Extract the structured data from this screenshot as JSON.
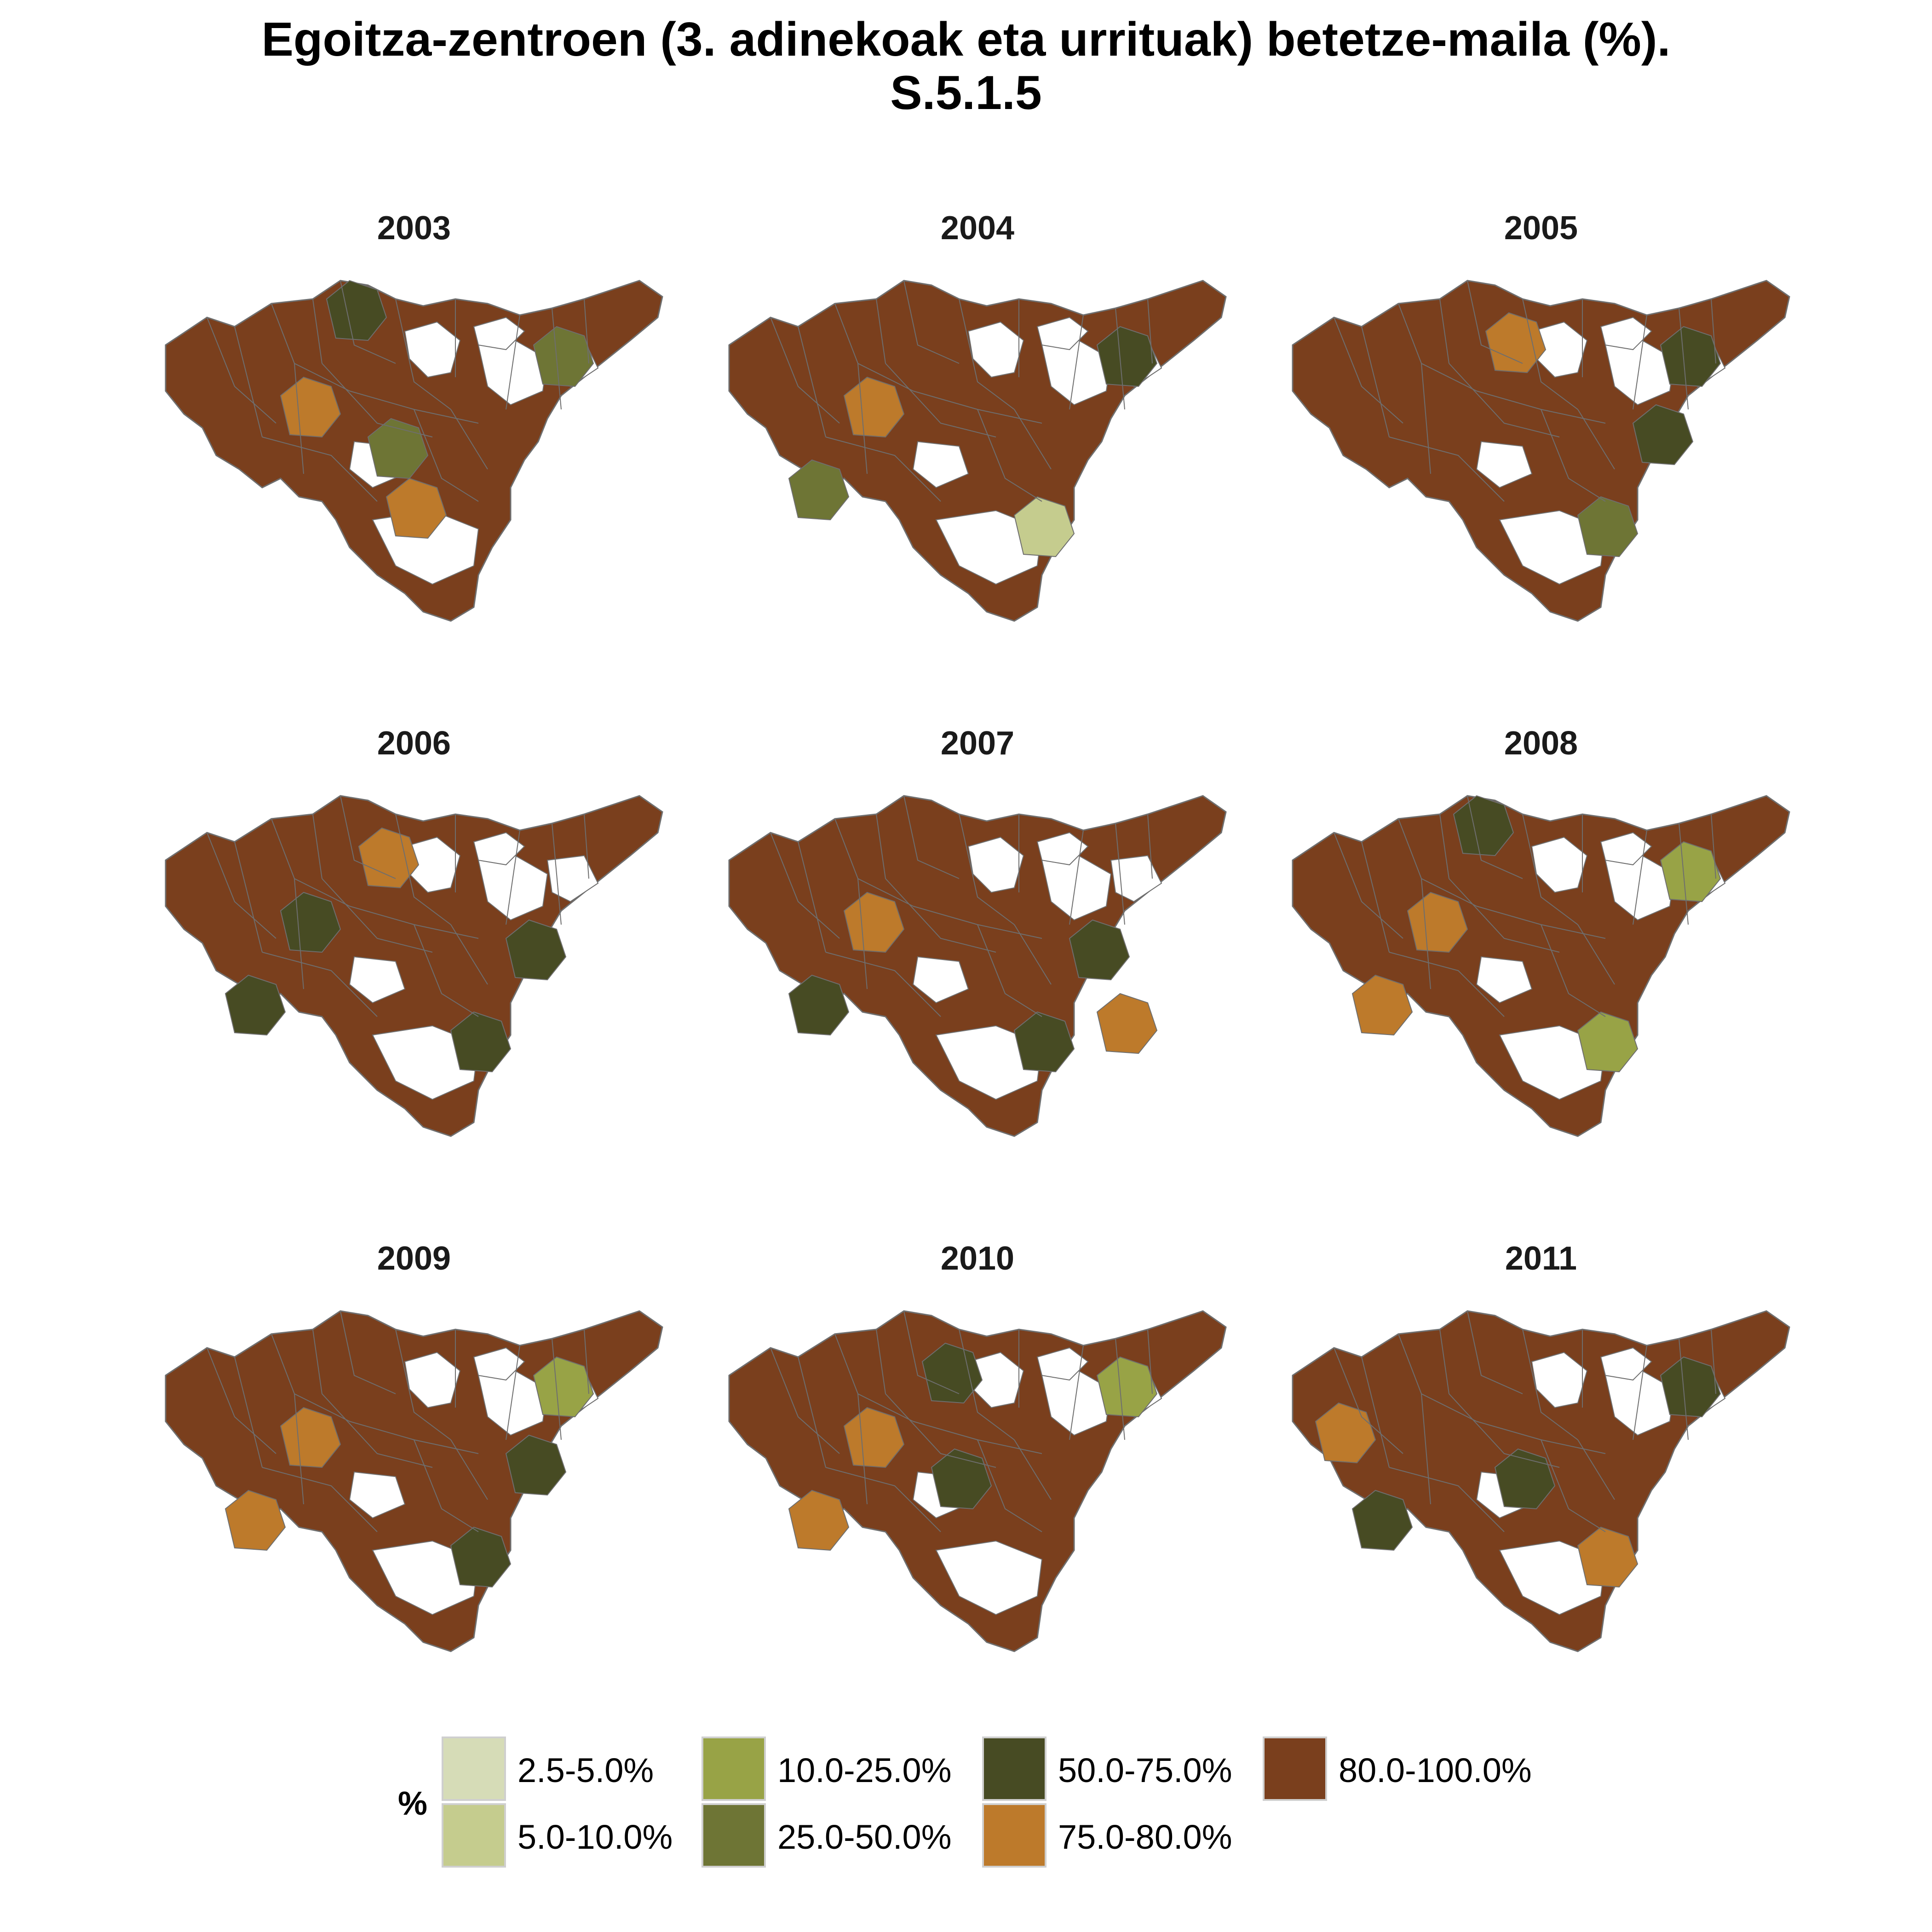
{
  "title": {
    "line1": "Egoitza-zentroen (3. adinekoak eta urrituak) betetze-maila (%).",
    "line2": "S.5.1.5"
  },
  "map_style": {
    "border_color": "#6e6e6e",
    "empty_fill": "#ffffff",
    "base_fill": "#7a3f1d"
  },
  "panels": [
    {
      "year": "2003",
      "dominant_class": "80.0-100.0%",
      "highlights": [
        {
          "class": "75.0-80.0%",
          "region": "west-central"
        },
        {
          "class": "75.0-80.0%",
          "region": "south-central"
        },
        {
          "class": "50.0-75.0%",
          "region": "north-coast"
        },
        {
          "class": "25.0-50.0%",
          "region": "north-east"
        },
        {
          "class": "25.0-50.0%",
          "region": "central"
        }
      ]
    },
    {
      "year": "2004",
      "dominant_class": "80.0-100.0%",
      "highlights": [
        {
          "class": "25.0-50.0%",
          "region": "south-west"
        },
        {
          "class": "75.0-80.0%",
          "region": "west-central"
        },
        {
          "class": "5.0-10.0%",
          "region": "south"
        },
        {
          "class": "50.0-75.0%",
          "region": "north-east"
        }
      ]
    },
    {
      "year": "2005",
      "dominant_class": "80.0-100.0%",
      "highlights": [
        {
          "class": "50.0-75.0%",
          "region": "east-central"
        },
        {
          "class": "25.0-50.0%",
          "region": "south"
        },
        {
          "class": "75.0-80.0%",
          "region": "north-central"
        },
        {
          "class": "50.0-75.0%",
          "region": "north-east"
        }
      ]
    },
    {
      "year": "2006",
      "dominant_class": "80.0-100.0%",
      "highlights": [
        {
          "class": "50.0-75.0%",
          "region": "south-west"
        },
        {
          "class": "50.0-75.0%",
          "region": "west-central"
        },
        {
          "class": "50.0-75.0%",
          "region": "east-central"
        },
        {
          "class": "50.0-75.0%",
          "region": "south"
        },
        {
          "class": "75.0-80.0%",
          "region": "north-central"
        }
      ]
    },
    {
      "year": "2007",
      "dominant_class": "80.0-100.0%",
      "highlights": [
        {
          "class": "50.0-75.0%",
          "region": "south-west"
        },
        {
          "class": "75.0-80.0%",
          "region": "west-central"
        },
        {
          "class": "50.0-75.0%",
          "region": "east-central"
        },
        {
          "class": "75.0-80.0%",
          "region": "south-east"
        },
        {
          "class": "50.0-75.0%",
          "region": "south"
        }
      ]
    },
    {
      "year": "2008",
      "dominant_class": "80.0-100.0%",
      "highlights": [
        {
          "class": "75.0-80.0%",
          "region": "south-west"
        },
        {
          "class": "75.0-80.0%",
          "region": "west-central"
        },
        {
          "class": "10.0-25.0%",
          "region": "south"
        },
        {
          "class": "10.0-25.0%",
          "region": "north-east"
        },
        {
          "class": "50.0-75.0%",
          "region": "north-coast"
        }
      ]
    },
    {
      "year": "2009",
      "dominant_class": "80.0-100.0%",
      "highlights": [
        {
          "class": "75.0-80.0%",
          "region": "south-west"
        },
        {
          "class": "75.0-80.0%",
          "region": "west-central"
        },
        {
          "class": "10.0-25.0%",
          "region": "north-east"
        },
        {
          "class": "50.0-75.0%",
          "region": "south"
        },
        {
          "class": "50.0-75.0%",
          "region": "east-central"
        }
      ]
    },
    {
      "year": "2010",
      "dominant_class": "80.0-100.0%",
      "highlights": [
        {
          "class": "75.0-80.0%",
          "region": "south-west"
        },
        {
          "class": "50.0-75.0%",
          "region": "central"
        },
        {
          "class": "50.0-75.0%",
          "region": "north-central"
        },
        {
          "class": "10.0-25.0%",
          "region": "north-east"
        },
        {
          "class": "75.0-80.0%",
          "region": "west-central"
        }
      ]
    },
    {
      "year": "2011",
      "dominant_class": "80.0-100.0%",
      "highlights": [
        {
          "class": "75.0-80.0%",
          "region": "west"
        },
        {
          "class": "50.0-75.0%",
          "region": "central"
        },
        {
          "class": "50.0-75.0%",
          "region": "south-west"
        },
        {
          "class": "50.0-75.0%",
          "region": "north-east"
        },
        {
          "class": "75.0-80.0%",
          "region": "south"
        }
      ]
    }
  ],
  "legend": {
    "title": "%",
    "items": [
      {
        "label": "2.5-5.0%",
        "color": "#d6dcb7"
      },
      {
        "label": "5.0-10.0%",
        "color": "#c5cc8e"
      },
      {
        "label": "10.0-25.0%",
        "color": "#98a346"
      },
      {
        "label": "25.0-50.0%",
        "color": "#6e7535"
      },
      {
        "label": "50.0-75.0%",
        "color": "#474b23"
      },
      {
        "label": "75.0-80.0%",
        "color": "#bd7a2b"
      },
      {
        "label": "80.0-100.0%",
        "color": "#7a3f1d"
      }
    ]
  }
}
